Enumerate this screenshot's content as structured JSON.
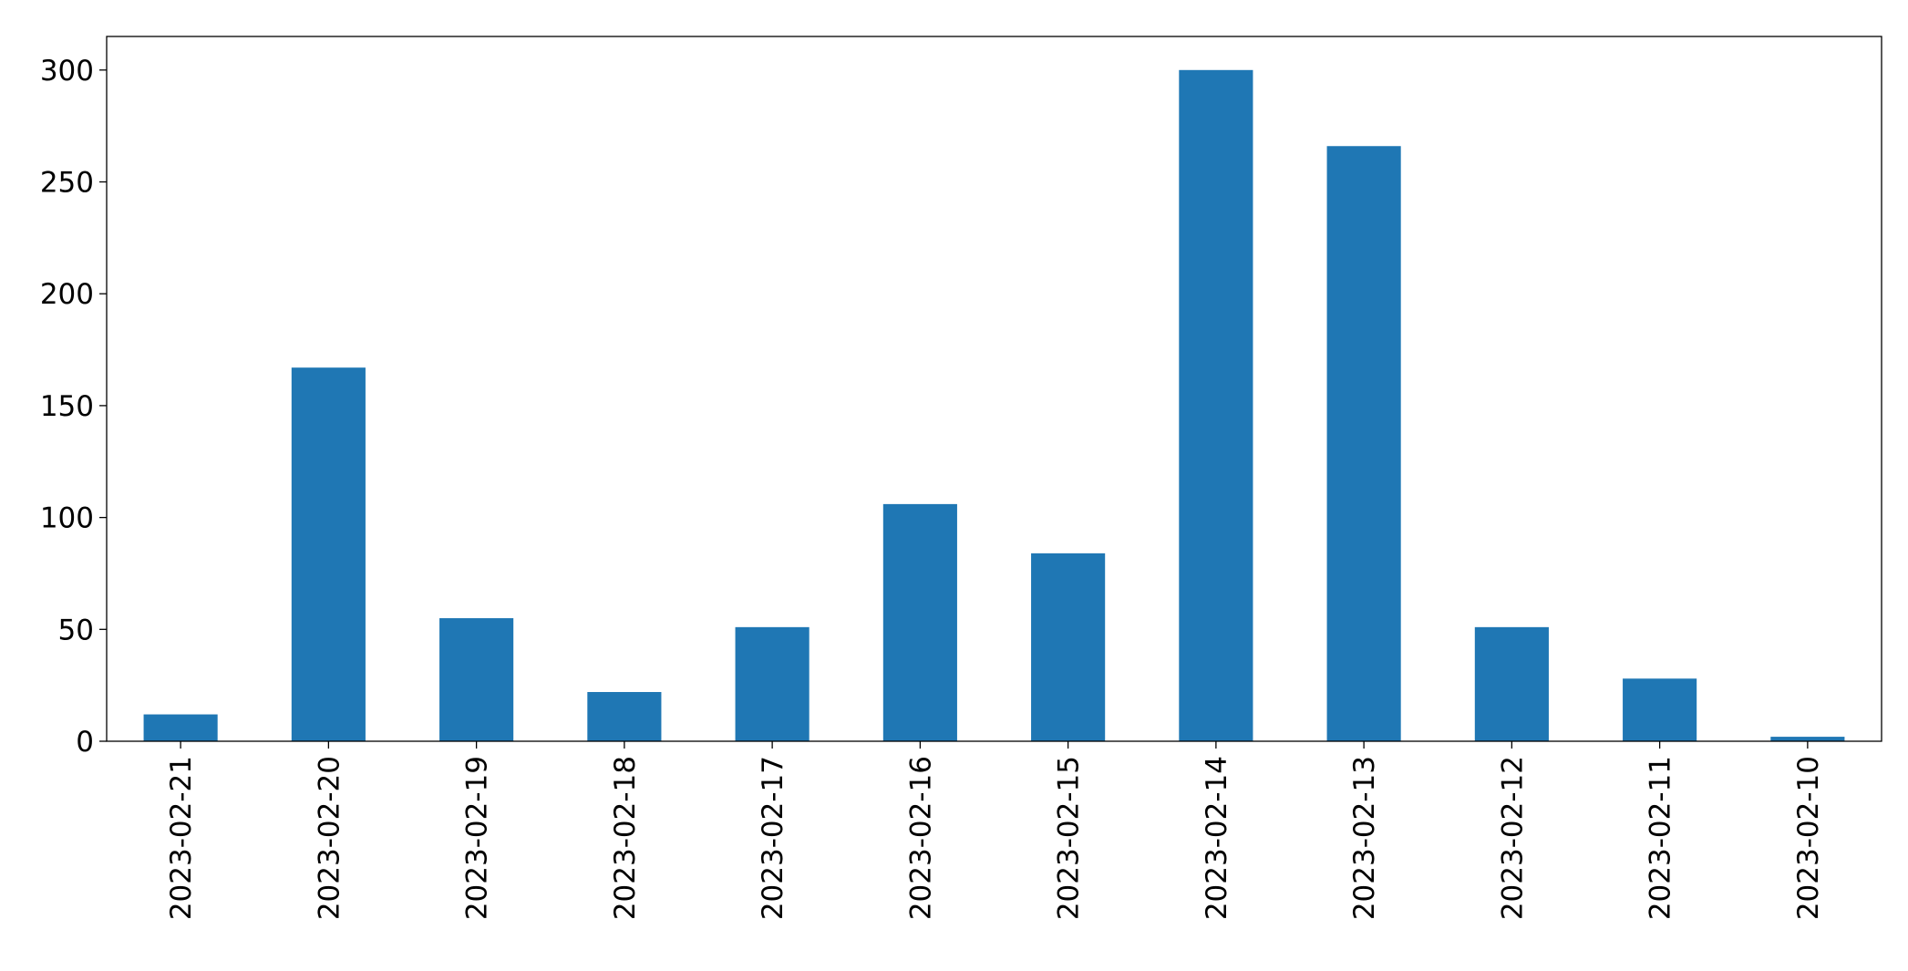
{
  "chart_data": {
    "type": "bar",
    "categories": [
      "2023-02-21",
      "2023-02-20",
      "2023-02-19",
      "2023-02-18",
      "2023-02-17",
      "2023-02-16",
      "2023-02-15",
      "2023-02-14",
      "2023-02-13",
      "2023-02-12",
      "2023-02-11",
      "2023-02-10"
    ],
    "values": [
      12,
      167,
      55,
      22,
      51,
      106,
      84,
      300,
      266,
      51,
      28,
      2
    ],
    "color": "#1f77b4",
    "ylim": [
      0,
      315
    ],
    "yticks": [
      0,
      50,
      100,
      150,
      200,
      250,
      300
    ],
    "grid": false
  }
}
